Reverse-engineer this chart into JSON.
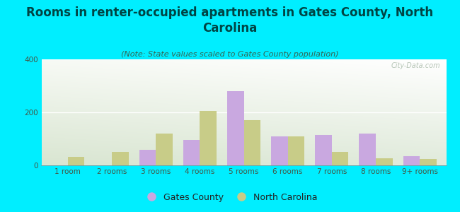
{
  "title": "Rooms in renter-occupied apartments in Gates County, North\nCarolina",
  "subtitle": "(Note: State values scaled to Gates County population)",
  "categories": [
    "1 room",
    "2 rooms",
    "3 rooms",
    "4 rooms",
    "5 rooms",
    "6 rooms",
    "7 rooms",
    "8 rooms",
    "9+ rooms"
  ],
  "gates_county": [
    0,
    0,
    60,
    95,
    280,
    110,
    115,
    120,
    35
  ],
  "north_carolina": [
    32,
    50,
    120,
    205,
    170,
    110,
    52,
    28,
    25
  ],
  "gates_color": "#c9a8e0",
  "nc_color": "#c8cc88",
  "background_outer": "#00eeff",
  "ylim": [
    0,
    400
  ],
  "yticks": [
    0,
    200,
    400
  ],
  "bar_width": 0.38,
  "title_fontsize": 12,
  "subtitle_fontsize": 8,
  "legend_fontsize": 9,
  "tick_fontsize": 7.5
}
